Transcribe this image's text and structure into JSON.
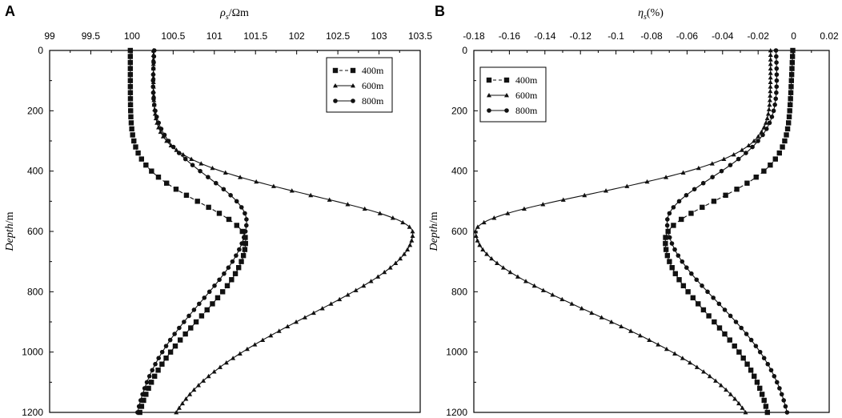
{
  "chart_data": [
    {
      "panel": "A",
      "type": "line",
      "xlabel": "ρs/Ωm",
      "ylabel": "Depth/m",
      "xlim": [
        99,
        103.5
      ],
      "ylim": [
        0,
        1200
      ],
      "y_inverted": true,
      "x_axis_position": "top",
      "x_ticks": [
        "99",
        "99.5",
        "100",
        "100.5",
        "101",
        "101.5",
        "102",
        "102.5",
        "103",
        "103.5"
      ],
      "y_ticks": [
        "0",
        "200",
        "400",
        "600",
        "800",
        "1000",
        "1200"
      ],
      "legend_position": "top-right",
      "series": [
        {
          "name": "400m",
          "marker": "square",
          "dash": "dashed",
          "baseline": 99.98,
          "amplitude": 1.4,
          "center": 630,
          "width": 125,
          "tail": 130
        },
        {
          "name": "600m",
          "marker": "triangle",
          "dash": "solid",
          "baseline": 100.26,
          "amplitude": 3.15,
          "center": 605,
          "width": 125,
          "tail": 145
        },
        {
          "name": "800m",
          "marker": "circle",
          "dash": "solid",
          "baseline": 100.2,
          "amplitude": 1.25,
          "center": 572,
          "width": 150,
          "tail": 110,
          "drift": [
            0.07,
            -0.2
          ]
        }
      ]
    },
    {
      "panel": "B",
      "type": "line",
      "xlabel": "ηs(%)",
      "ylabel": "Depth/m",
      "xlim": [
        -0.18,
        0.02
      ],
      "ylim": [
        0,
        1200
      ],
      "y_inverted": true,
      "x_axis_position": "top",
      "x_ticks": [
        "-0.18",
        "-0.16",
        "-0.14",
        "-0.12",
        "-0.1",
        "-0.08",
        "-0.06",
        "-0.04",
        "-0.02",
        "0",
        "0.02"
      ],
      "y_ticks": [
        "0",
        "200",
        "400",
        "600",
        "800",
        "1000",
        "1200"
      ],
      "legend_position": "top-left",
      "series": [
        {
          "name": "400m",
          "marker": "square",
          "dash": "dashed",
          "baseline": -0.0005,
          "amplitude": -0.067,
          "center": 625,
          "width": 125,
          "tail": 130,
          "drift": [
            0,
            -0.009
          ]
        },
        {
          "name": "600m",
          "marker": "triangle",
          "dash": "solid",
          "baseline": -0.013,
          "amplitude": -0.166,
          "center": 600,
          "width": 125,
          "tail": 145
        },
        {
          "name": "800m",
          "marker": "circle",
          "dash": "solid",
          "baseline": -0.01,
          "amplitude": -0.066,
          "center": 573,
          "width": 150,
          "tail": 110,
          "drift": [
            0.0001,
            0.0099
          ]
        }
      ]
    }
  ]
}
